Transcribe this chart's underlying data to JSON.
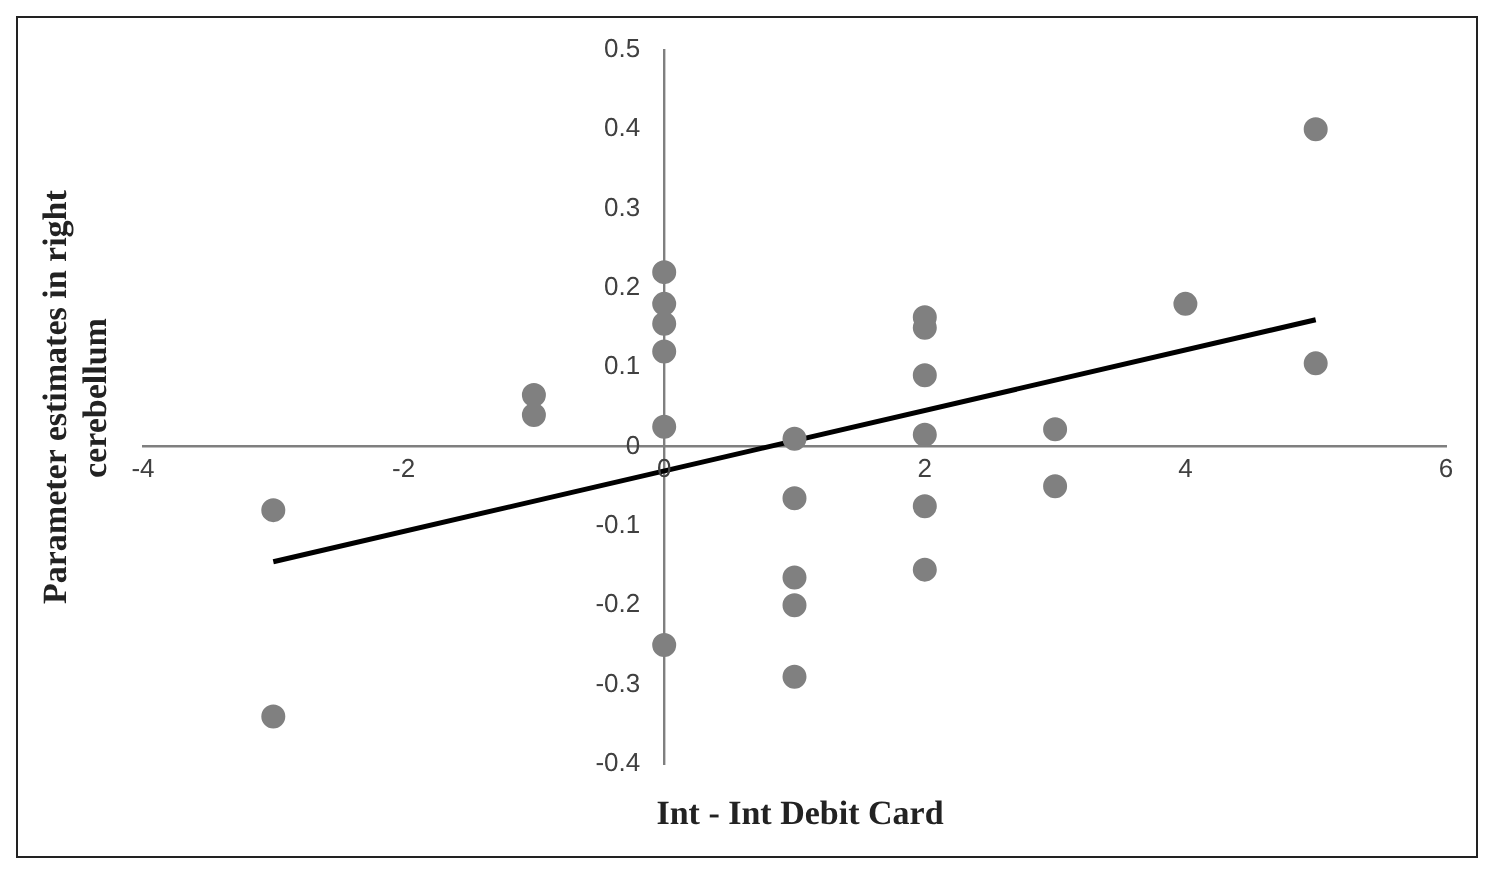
{
  "chart_data": {
    "type": "scatter",
    "xlabel": "Int - Int Debit Card",
    "ylabel": "Parameter estimates in right cerebellum",
    "series": [
      {
        "color": "#808080",
        "marker": "circle",
        "x": [
          -3,
          -3,
          -1,
          -1,
          0,
          0,
          0,
          0,
          0,
          0,
          1,
          1,
          1,
          1,
          1,
          2,
          2,
          2,
          2,
          2,
          2,
          3,
          3,
          4,
          5,
          5
        ],
        "values": [
          -0.08,
          -0.34,
          0.065,
          0.04,
          0.22,
          0.18,
          0.155,
          0.12,
          0.025,
          -0.25,
          0.01,
          -0.065,
          -0.165,
          -0.2,
          -0.29,
          0.163,
          0.15,
          0.09,
          0.015,
          -0.075,
          -0.155,
          0.022,
          -0.05,
          0.18,
          0.4,
          0.105
        ]
      },
      {
        "type": "line",
        "color": "#000000",
        "marker": "none",
        "x": [
          -3,
          5
        ],
        "values": [
          -0.145,
          0.16
        ]
      }
    ],
    "xlim": [
      -4,
      6
    ],
    "xticks": [
      -4,
      -2,
      0,
      2,
      4,
      6
    ],
    "ylim": [
      -0.4,
      0.5
    ],
    "yticks": [
      -0.4,
      -0.3,
      -0.2,
      -0.1,
      0,
      0.1,
      0.2,
      0.3,
      0.4,
      0.5
    ],
    "grid": false,
    "legend": false
  }
}
